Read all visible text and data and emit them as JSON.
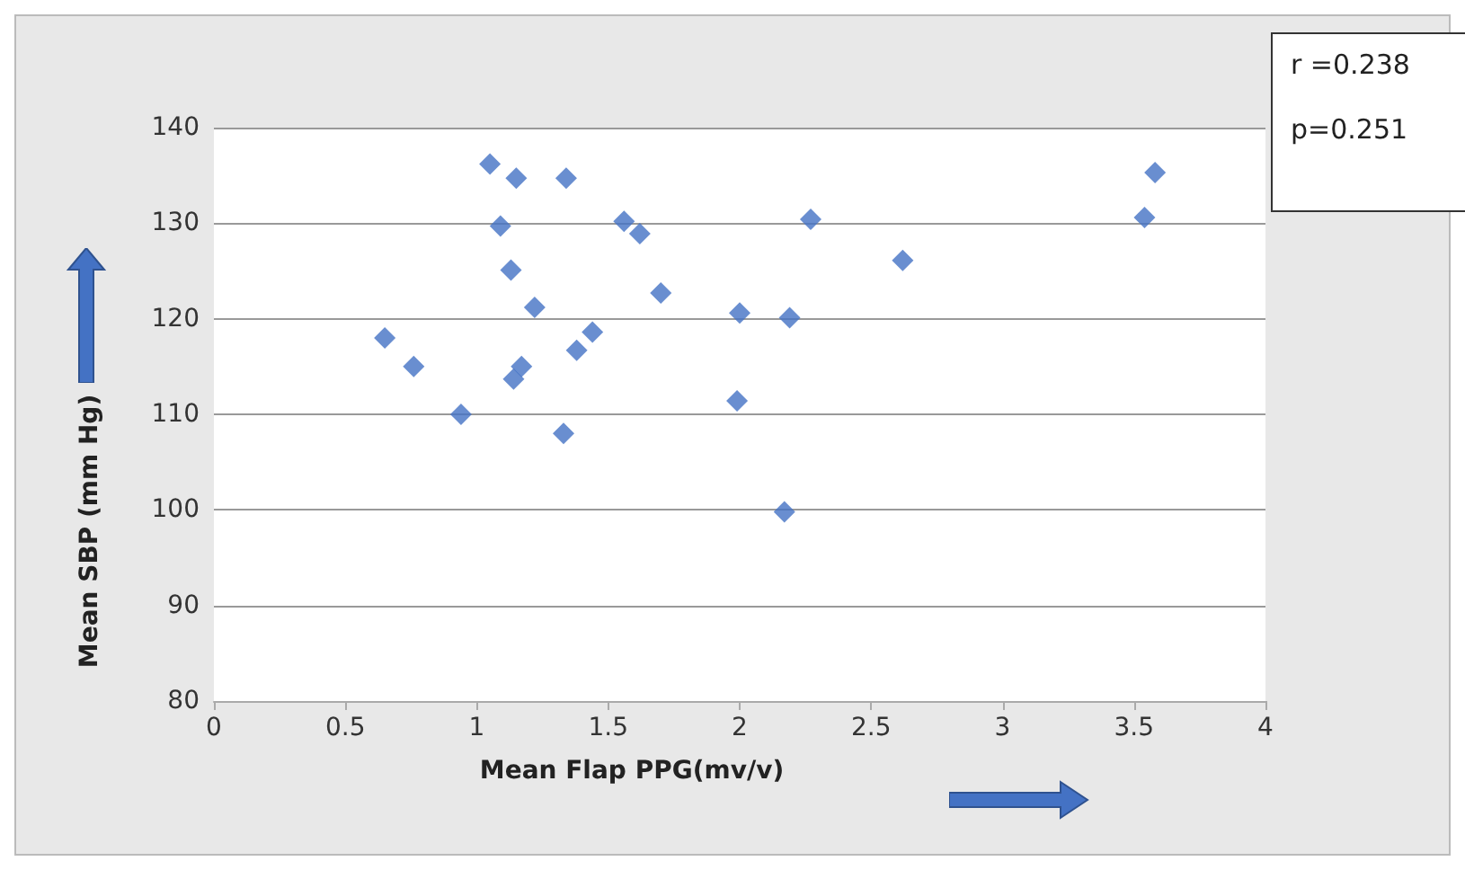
{
  "chart_data": {
    "type": "scatter",
    "xlabel": "Mean Flap PPG(mv/v)",
    "ylabel": "Mean SBP (mm Hg)",
    "annotations": [
      "r =0.238",
      "p=0.251"
    ],
    "x": [
      0.65,
      0.76,
      0.94,
      1.05,
      1.09,
      1.14,
      1.17,
      1.13,
      1.15,
      1.22,
      1.33,
      1.34,
      1.38,
      1.44,
      1.56,
      1.62,
      1.7,
      1.99,
      2.0,
      2.17,
      2.19,
      2.27,
      2.62,
      3.54,
      3.58
    ],
    "series": [
      {
        "color": "#4472c4",
        "values": [
          118,
          115,
          110,
          136.2,
          129.7,
          113.7,
          115,
          125.1,
          134.7,
          121.2,
          108,
          134.7,
          116.7,
          118.6,
          130.2,
          128.9,
          122.7,
          111.4,
          120.6,
          99.8,
          120.1,
          130.4,
          126.1,
          130.6,
          135.3
        ]
      }
    ],
    "xlim": [
      0,
      4
    ],
    "xticks": [
      0,
      0.5,
      1,
      1.5,
      2,
      2.5,
      3,
      3.5,
      4
    ],
    "ylim": [
      80,
      140
    ],
    "yticks": [
      80,
      90,
      100,
      110,
      120,
      130,
      140
    ],
    "grid": "y",
    "marker": "diamond"
  }
}
